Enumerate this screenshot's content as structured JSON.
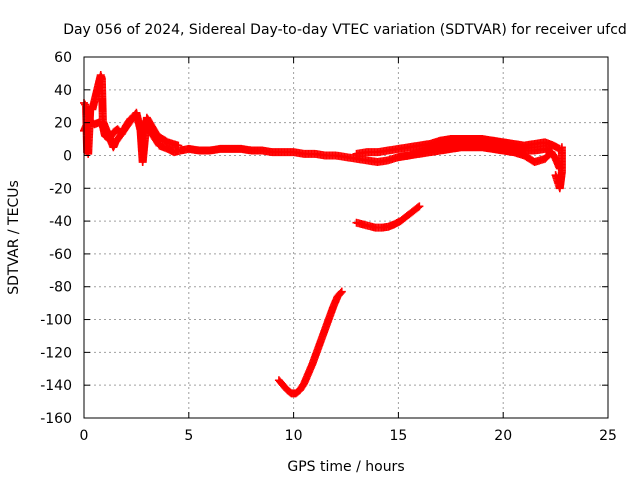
{
  "chart_data": {
    "type": "scatter",
    "title": "Day 056 of 2024, Sidereal Day-to-day VTEC variation (SDTVAR) for receiver ufcd",
    "xlabel": "GPS time / hours",
    "ylabel": "SDTVAR / TECUs",
    "xlim": [
      0,
      25
    ],
    "ylim": [
      -160,
      60
    ],
    "xticks": [
      0,
      5,
      10,
      15,
      20,
      25
    ],
    "yticks": [
      -160,
      -140,
      -120,
      -100,
      -80,
      -60,
      -40,
      -20,
      0,
      20,
      40,
      60
    ],
    "grid": true,
    "marker": "plus",
    "color": "#ff0000",
    "series": [
      {
        "name": "main",
        "x": [
          0.0,
          0.1,
          0.2,
          0.3,
          0.5,
          0.7,
          0.9,
          1.0,
          1.2,
          1.4,
          1.6,
          1.8,
          2.0,
          2.2,
          2.4,
          2.6,
          2.8,
          3.0,
          3.2,
          3.4,
          3.6,
          3.8,
          4.0,
          4.3,
          4.6,
          5.0,
          5.5,
          6.0,
          6.5,
          7.0,
          7.5,
          8.0,
          8.5,
          9.0,
          9.5,
          10.0,
          10.5,
          11.0,
          11.5,
          12.0,
          12.5,
          13.0,
          13.5,
          14.0,
          14.5,
          15.0,
          15.5,
          16.0,
          16.5,
          17.0,
          17.5,
          18.0,
          18.5,
          19.0,
          19.5,
          20.0,
          20.5,
          21.0,
          21.5,
          22.0,
          22.3,
          22.5,
          22.7
        ],
        "y": [
          15,
          18,
          20,
          21,
          19,
          20,
          18,
          12,
          10,
          14,
          16,
          13,
          18,
          22,
          24,
          21,
          18,
          16,
          14,
          10,
          6,
          5,
          4,
          2,
          3,
          4,
          3,
          3,
          4,
          4,
          4,
          3,
          3,
          2,
          2,
          2,
          1,
          1,
          0,
          0,
          -1,
          -2,
          -3,
          -4,
          -3,
          -1,
          0,
          2,
          4,
          6,
          8,
          9,
          9,
          8,
          7,
          6,
          4,
          3,
          3,
          4,
          2,
          -2,
          -8
        ]
      },
      {
        "name": "upper-branch",
        "x": [
          13.0,
          13.5,
          14.0,
          14.5,
          15.0,
          15.5,
          16.0,
          16.5,
          17.0,
          17.5,
          18.0,
          18.5,
          19.0,
          19.5,
          20.0,
          20.5,
          21.0,
          21.5,
          22.0,
          22.4,
          22.7
        ],
        "y": [
          1,
          2,
          2,
          3,
          4,
          5,
          6,
          7,
          9,
          10,
          10,
          10,
          10,
          9,
          8,
          7,
          6,
          7,
          8,
          6,
          4
        ]
      },
      {
        "name": "lower-branch",
        "x": [
          15.0,
          15.5,
          16.0,
          16.5,
          17.0,
          17.5,
          18.0,
          18.5,
          19.0,
          19.5,
          20.0,
          20.5,
          21.0,
          21.5,
          22.0,
          22.3
        ],
        "y": [
          -1,
          0,
          1,
          2,
          3,
          4,
          5,
          5,
          5,
          4,
          3,
          2,
          0,
          -4,
          -2,
          2
        ]
      },
      {
        "name": "early-cluster",
        "x": [
          0.0,
          0.05,
          0.1,
          0.15,
          0.2,
          0.3,
          0.4,
          0.8,
          0.85,
          0.9,
          1.4,
          1.5,
          2.5,
          2.7,
          2.8,
          3.0,
          3.5,
          4.0,
          4.5
        ],
        "y": [
          32,
          31,
          30,
          2,
          1,
          29,
          28,
          49,
          47,
          21,
          5,
          8,
          26,
          15,
          -4,
          23,
          12,
          8,
          6
        ]
      },
      {
        "name": "tail-drop",
        "x": [
          22.5,
          22.55,
          22.6,
          22.65,
          22.7,
          22.75,
          22.8,
          22.8,
          22.8
        ],
        "y": [
          -12,
          -14,
          -16,
          -18,
          -20,
          -15,
          -10,
          0,
          5
        ]
      },
      {
        "name": "arc-middle",
        "x": [
          13.0,
          13.3,
          13.6,
          13.9,
          14.2,
          14.5,
          14.8,
          15.1,
          15.4,
          15.7,
          16.0
        ],
        "y": [
          -41,
          -42,
          -43,
          -44,
          -44,
          -43.5,
          -42,
          -40,
          -37,
          -34,
          -31
        ]
      },
      {
        "name": "arc-bottom",
        "x": [
          9.3,
          9.5,
          9.7,
          9.9,
          10.1,
          10.3,
          10.5,
          10.7,
          10.9,
          11.1,
          11.3,
          11.5,
          11.7,
          11.9,
          12.1,
          12.3
        ],
        "y": [
          -137,
          -140,
          -143,
          -145,
          -145,
          -143,
          -139,
          -133,
          -127,
          -120,
          -113,
          -106,
          -99,
          -92,
          -86,
          -83
        ]
      }
    ]
  }
}
